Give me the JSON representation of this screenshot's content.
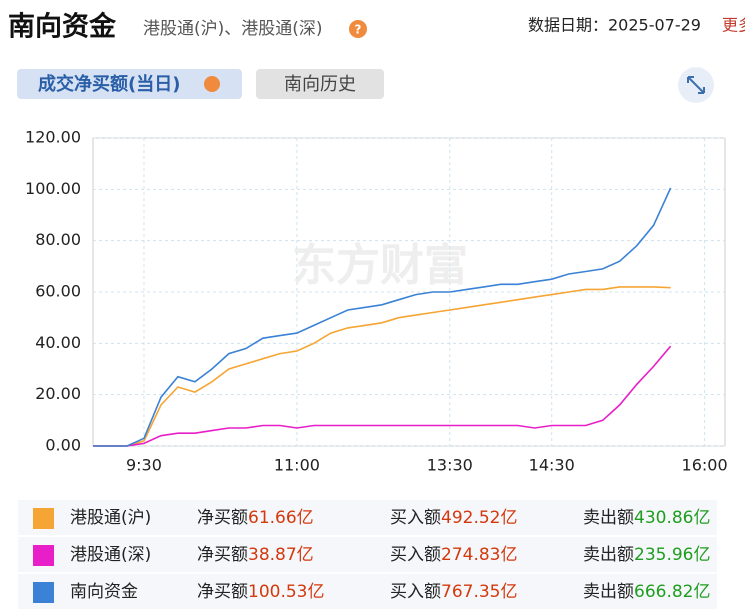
{
  "header": {
    "title": "南向资金",
    "subtitle": "港股通(沪)、港股通(深)",
    "date": "数据日期：2025-07-29",
    "more": "更多"
  },
  "tabs": [
    "成交净买额(当日)",
    "南向历史"
  ],
  "watermark": "东方财富",
  "chart_data": {
    "type": "line",
    "x": [
      0,
      10,
      20,
      30,
      40,
      50,
      60,
      70,
      80,
      90,
      100,
      110,
      120,
      130,
      140,
      150,
      160,
      170,
      180,
      190,
      200,
      210,
      220,
      230,
      240,
      250,
      260,
      270,
      280,
      290,
      300,
      310,
      320,
      330,
      340
    ],
    "xlim": [
      0,
      372
    ],
    "xticks": [
      {
        "value": 30,
        "label": "9:30"
      },
      {
        "value": 120,
        "label": "11:00"
      },
      {
        "value": 210,
        "label": "13:30"
      },
      {
        "value": 270,
        "label": "14:30"
      },
      {
        "value": 360,
        "label": "16:00"
      }
    ],
    "ylim": [
      0,
      120
    ],
    "yticks": [
      {
        "value": 0,
        "label": "0.00"
      },
      {
        "value": 20,
        "label": "20.00"
      },
      {
        "value": 40,
        "label": "40.00"
      },
      {
        "value": 60,
        "label": "60.00"
      },
      {
        "value": 80,
        "label": "80.00"
      },
      {
        "value": 100,
        "label": "100.00"
      },
      {
        "value": 120,
        "label": "120.00"
      }
    ],
    "grid": true,
    "series": [
      {
        "name": "港股通(沪)",
        "color": "#f5a533",
        "values": [
          0,
          0,
          0,
          2,
          16,
          23,
          21,
          25,
          30,
          32,
          34,
          36,
          37,
          40,
          44,
          46,
          47,
          48,
          50,
          51,
          52,
          53,
          54,
          55,
          56,
          57,
          58,
          59,
          60,
          61,
          61,
          62,
          62,
          62,
          61.66
        ]
      },
      {
        "name": "港股通(深)",
        "color": "#e81ec8",
        "values": [
          0,
          0,
          0,
          1,
          4,
          5,
          5,
          6,
          7,
          7,
          8,
          8,
          7,
          8,
          8,
          8,
          8,
          8,
          8,
          8,
          8,
          8,
          8,
          8,
          8,
          8,
          7,
          8,
          8,
          8,
          10,
          16,
          24,
          31,
          38.87
        ]
      },
      {
        "name": "南向资金",
        "color": "#3b82d6",
        "values": [
          0,
          0,
          0,
          3,
          19,
          27,
          25,
          30,
          36,
          38,
          42,
          43,
          44,
          47,
          50,
          53,
          54,
          55,
          57,
          59,
          60,
          60,
          61,
          62,
          63,
          63,
          64,
          65,
          67,
          68,
          69,
          72,
          78,
          86,
          100.53
        ]
      }
    ]
  },
  "summary": {
    "rows": [
      {
        "net_label": "净买额",
        "net": "61.66亿",
        "buy_label": "买入额",
        "buy": "492.52亿",
        "sell_label": "卖出额",
        "sell": "430.86亿"
      },
      {
        "net_label": "净买额",
        "net": "38.87亿",
        "buy_label": "买入额",
        "buy": "274.83亿",
        "sell_label": "卖出额",
        "sell": "235.96亿"
      },
      {
        "net_label": "净买额",
        "net": "100.53亿",
        "buy_label": "买入额",
        "buy": "767.35亿",
        "sell_label": "卖出额",
        "sell": "666.82亿"
      }
    ]
  }
}
